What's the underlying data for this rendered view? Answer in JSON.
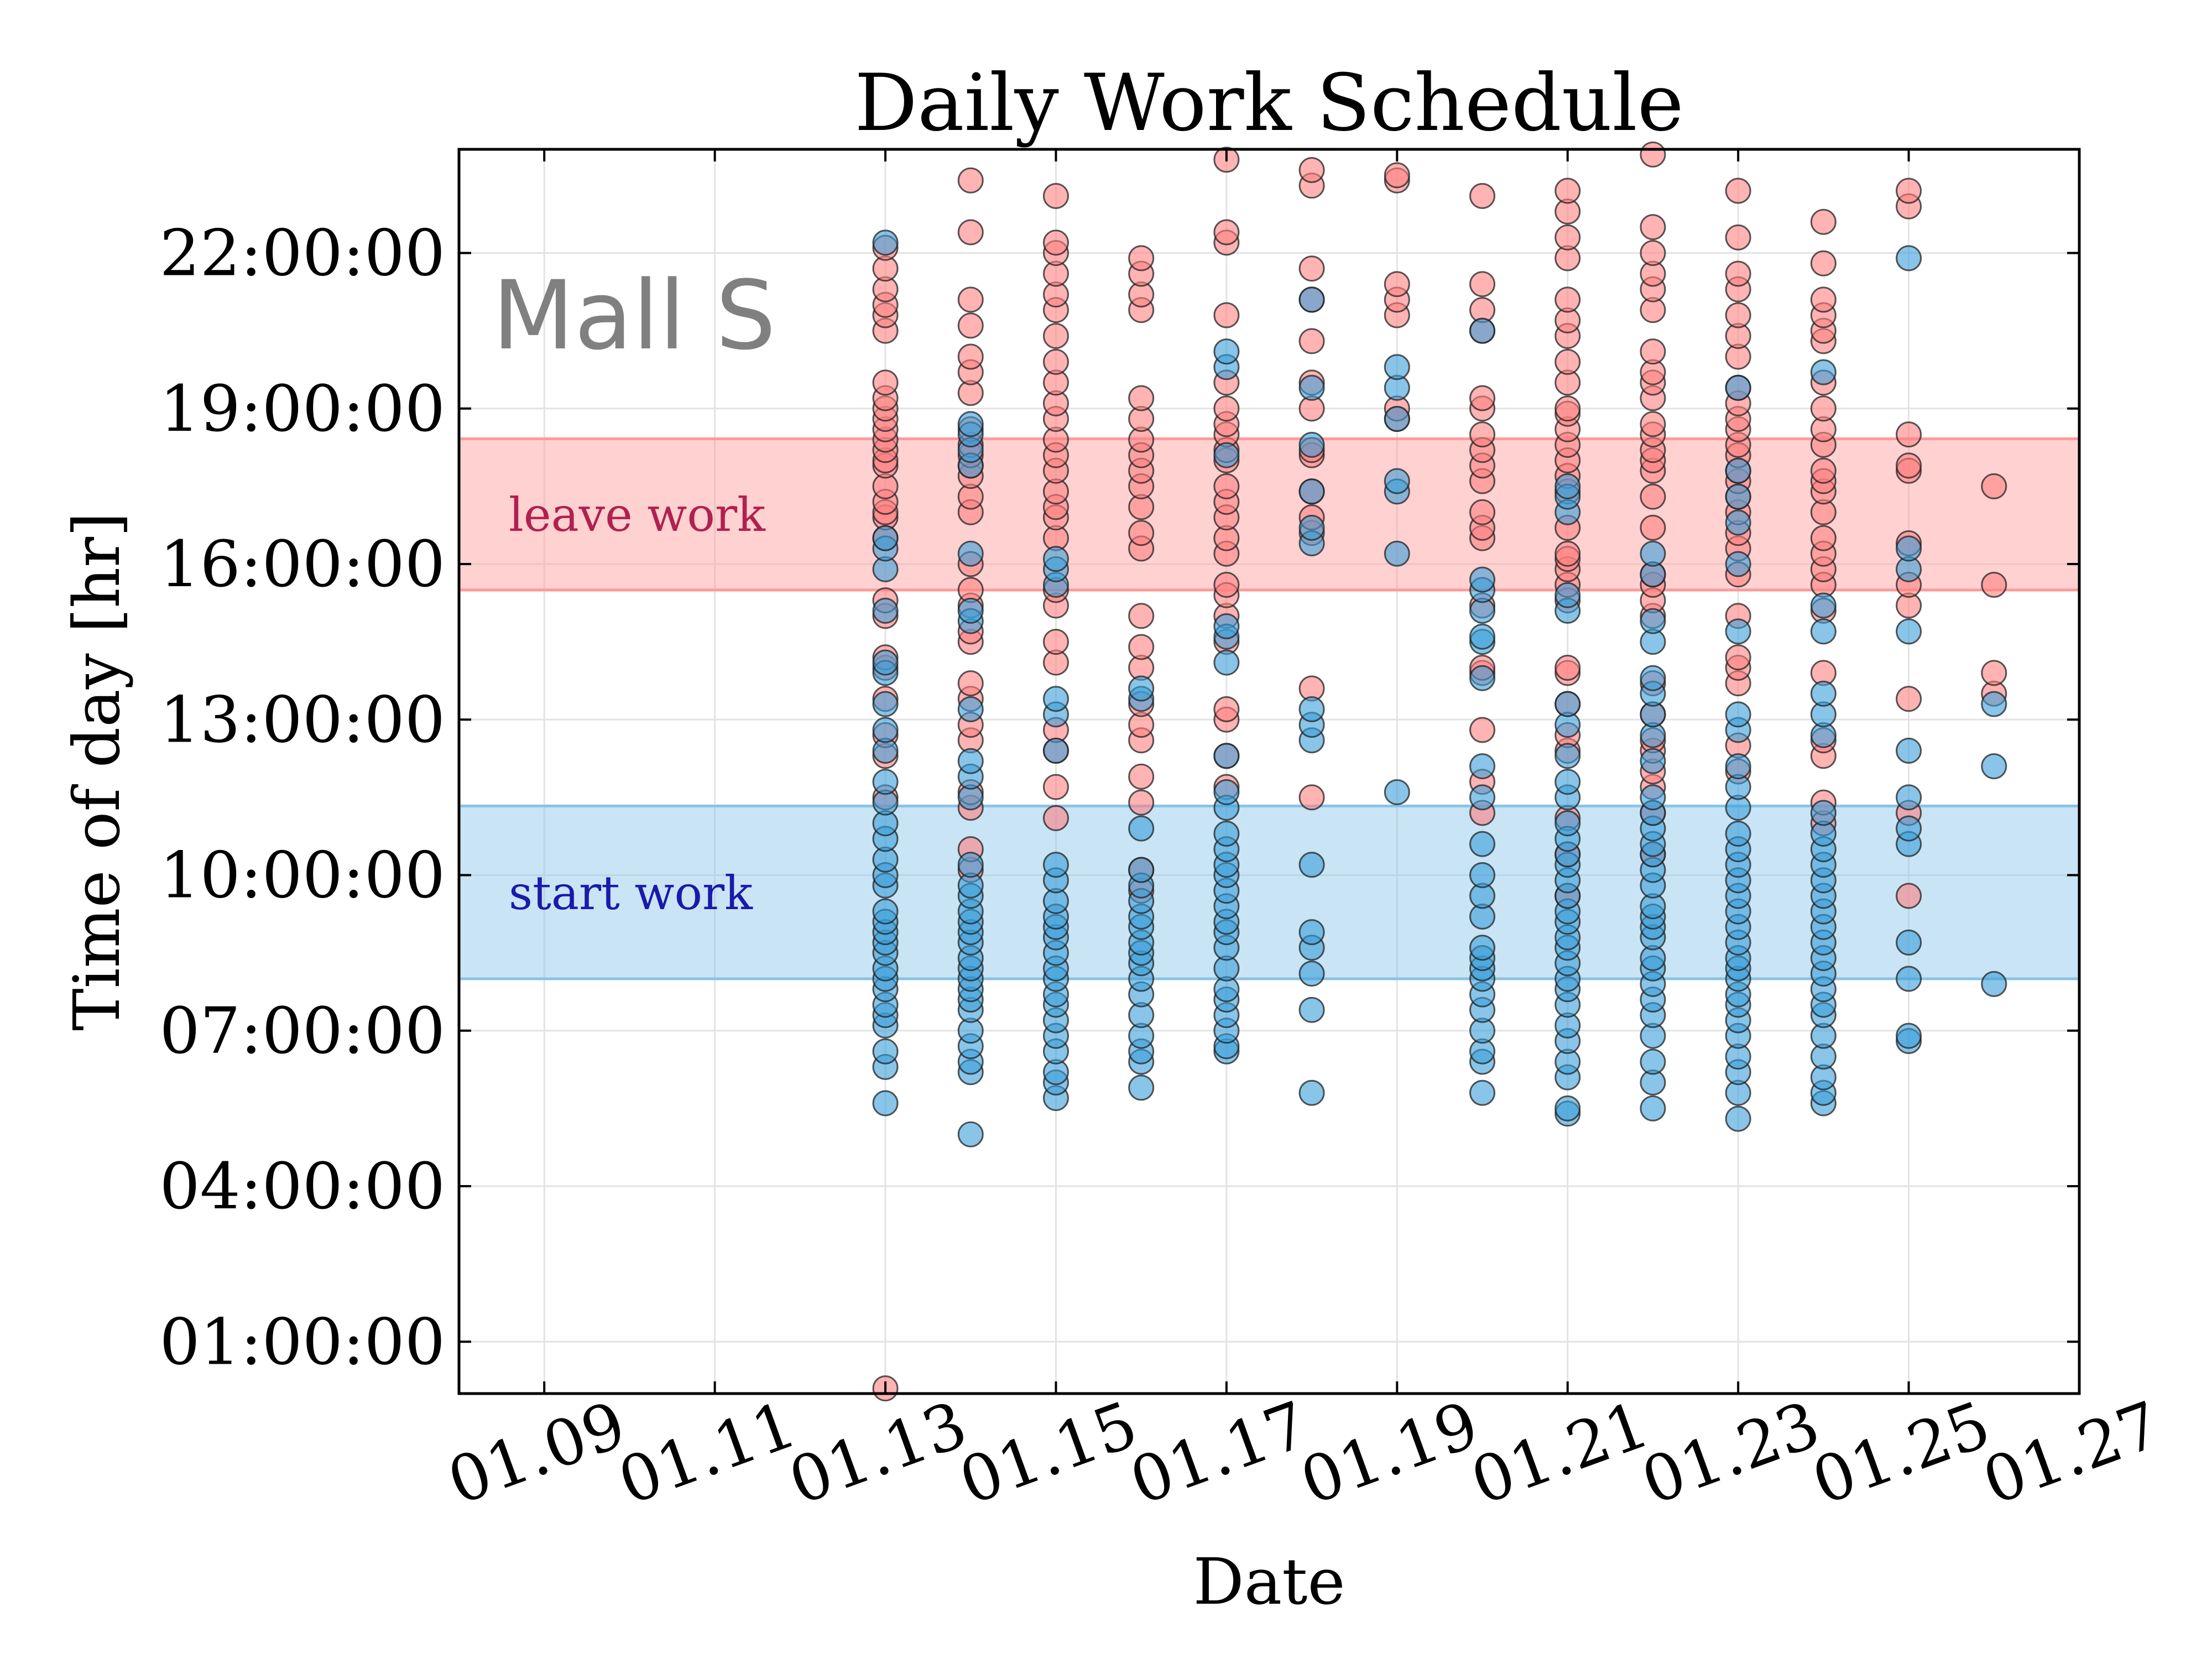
{
  "chart_data": {
    "type": "scatter",
    "title": "Daily Work Schedule",
    "xlabel": "Date",
    "ylabel": "Time of day [hr]",
    "annotation": "Mall S",
    "grid": true,
    "xlim": [
      "01.08",
      "01.27"
    ],
    "ylim": [
      "00:00:00",
      "24:00:00"
    ],
    "x_ticks": [
      "01.09",
      "01.11",
      "01.13",
      "01.15",
      "01.17",
      "01.19",
      "01.21",
      "01.23",
      "01.25",
      "01.27"
    ],
    "y_ticks": [
      "01:00:00",
      "04:00:00",
      "07:00:00",
      "10:00:00",
      "13:00:00",
      "16:00:00",
      "19:00:00",
      "22:00:00"
    ],
    "bands": [
      {
        "label": "leave work",
        "y_from": "15:30",
        "y_to": "18:25",
        "color": "#ff9999",
        "label_color": "#b02050"
      },
      {
        "label": "start work",
        "y_from": "08:00",
        "y_to": "11:20",
        "color": "#87c4e8",
        "label_color": "#1a1aaa"
      }
    ],
    "series": [
      {
        "color": "#ff8080",
        "points": [
          {
            "x": "01.13",
            "y": [
              0.1,
              11.5,
              12.3,
              12.7,
              13.4,
              14.0,
              14.2,
              15.0,
              15.3,
              16.5,
              16.9,
              17.0,
              17.2,
              17.5,
              17.9,
              18.0,
              18.2,
              18.4,
              18.6,
              18.8,
              19.0,
              19.2,
              19.5,
              20.5,
              20.8,
              21.0,
              21.3,
              21.7,
              22.1
            ]
          },
          {
            "x": "01.14",
            "y": [
              10.1,
              10.5,
              11.3,
              11.6,
              12.6,
              12.9,
              13.4,
              13.7,
              14.5,
              14.7,
              15.2,
              15.5,
              16.0,
              17.0,
              17.3,
              17.7,
              17.9,
              18.1,
              18.3,
              18.6,
              19.3,
              19.7,
              20.0,
              20.6,
              21.1,
              22.4,
              23.4
            ]
          },
          {
            "x": "01.15",
            "y": [
              11.1,
              11.7,
              12.4,
              12.8,
              14.1,
              14.5,
              15.2,
              15.5,
              16.5,
              16.9,
              17.1,
              17.4,
              17.8,
              18.1,
              18.4,
              18.8,
              19.1,
              19.5,
              19.9,
              20.4,
              20.9,
              21.2,
              21.6,
              22.0,
              22.2,
              23.1
            ]
          },
          {
            "x": "01.16",
            "y": [
              9.7,
              10.1,
              11.4,
              11.9,
              12.6,
              12.9,
              13.3,
              14.0,
              14.4,
              15.0,
              16.3,
              16.6,
              17.1,
              17.5,
              17.8,
              18.1,
              18.4,
              18.8,
              19.2,
              20.9,
              21.2,
              21.6,
              21.9
            ]
          },
          {
            "x": "01.17",
            "y": [
              11.7,
              12.3,
              13.0,
              13.2,
              14.5,
              15.0,
              15.4,
              15.6,
              16.2,
              16.5,
              16.9,
              17.2,
              17.5,
              18.0,
              18.2,
              18.5,
              18.7,
              19.0,
              19.5,
              20.8,
              22.2,
              22.4,
              23.8
            ]
          },
          {
            "x": "01.18",
            "y": [
              11.5,
              13.6,
              16.6,
              16.9,
              17.4,
              18.1,
              18.2,
              19.0,
              19.5,
              20.3,
              21.1,
              21.7,
              23.3,
              23.6
            ]
          },
          {
            "x": "01.19",
            "y": [
              18.8,
              19.0,
              20.8,
              21.1,
              21.4,
              23.4,
              23.5
            ]
          },
          {
            "x": "01.20",
            "y": [
              11.2,
              11.8,
              12.8,
              13.9,
              14.0,
              15.2,
              16.5,
              16.7,
              17.0,
              17.6,
              17.9,
              18.2,
              18.5,
              19.0,
              19.2,
              20.5,
              20.9,
              21.4,
              23.1
            ]
          },
          {
            "x": "01.21",
            "y": [
              9.6,
              10.4,
              11.1,
              12.4,
              12.7,
              13.3,
              13.9,
              14.0,
              15.3,
              15.6,
              15.9,
              16.1,
              16.2,
              16.7,
              17.4,
              17.7,
              18.0,
              18.3,
              18.6,
              18.9,
              19.0,
              19.5,
              19.9,
              20.4,
              20.7,
              21.1,
              21.9,
              22.3,
              22.8,
              23.2
            ]
          },
          {
            "x": "01.22",
            "y": [
              10.4,
              11.2,
              11.7,
              12.0,
              12.4,
              12.6,
              13.1,
              13.7,
              15.0,
              15.3,
              15.6,
              15.8,
              16.7,
              17.3,
              17.8,
              18.0,
              18.2,
              18.5,
              18.7,
              19.2,
              19.5,
              19.7,
              20.1,
              20.9,
              21.3,
              21.6,
              22.0,
              22.5,
              23.9
            ]
          },
          {
            "x": "01.23",
            "y": [
              12.0,
              12.5,
              13.7,
              14.0,
              14.2,
              15.0,
              15.8,
              16.3,
              16.6,
              17.0,
              17.3,
              17.6,
              17.8,
              18.1,
              18.3,
              18.6,
              18.8,
              19.1,
              19.4,
              20.0,
              20.4,
              20.8,
              21.3,
              21.6,
              22.3,
              23.2
            ]
          },
          {
            "x": "01.24",
            "y": [
              11.0,
              11.4,
              12.3,
              12.6,
              13.9,
              15.1,
              15.6,
              15.9,
              16.2,
              16.5,
              17.0,
              17.4,
              17.6,
              17.8,
              18.3,
              18.6,
              19.0,
              19.5,
              20.3,
              20.5,
              20.8,
              21.1,
              21.8,
              22.6
            ]
          },
          {
            "x": "01.25",
            "y": [
              9.6,
              11.2,
              13.4,
              15.2,
              15.6,
              16.4,
              17.8,
              17.9,
              18.5,
              22.9,
              23.2
            ]
          },
          {
            "x": "01.26",
            "y": [
              13.5,
              13.9,
              15.6,
              17.5
            ]
          }
        ]
      },
      {
        "color": "#3a9fd8",
        "points": [
          {
            "x": "01.13",
            "y": [
              5.6,
              6.3,
              6.6,
              7.1,
              7.3,
              7.5,
              7.8,
              8.0,
              8.2,
              8.5,
              8.7,
              8.9,
              9.1,
              9.3,
              9.8,
              10.0,
              10.3,
              10.7,
              11.0,
              11.4,
              11.8,
              12.4,
              12.8,
              13.3,
              13.9,
              14.1,
              15.1,
              15.9,
              16.3,
              16.5,
              22.2
            ]
          },
          {
            "x": "01.14",
            "y": [
              5.0,
              6.2,
              6.4,
              6.7,
              7.0,
              7.4,
              7.6,
              7.8,
              8.0,
              8.2,
              8.4,
              8.7,
              8.9,
              9.1,
              9.3,
              9.6,
              9.8,
              10.2,
              11.5,
              11.9,
              12.2,
              13.2,
              14.9,
              15.1,
              16.2,
              17.9,
              18.2,
              18.5,
              18.7
            ]
          },
          {
            "x": "01.15",
            "y": [
              5.7,
              6.0,
              6.2,
              6.6,
              6.9,
              7.2,
              7.5,
              7.7,
              8.0,
              8.2,
              8.5,
              8.8,
              9.0,
              9.2,
              9.5,
              9.9,
              10.2,
              12.4,
              13.1,
              13.4,
              15.6,
              15.9,
              16.1
            ]
          },
          {
            "x": "01.16",
            "y": [
              5.9,
              6.4,
              6.6,
              6.9,
              7.3,
              7.7,
              8.0,
              8.3,
              8.5,
              8.7,
              9.0,
              9.2,
              9.5,
              9.8,
              10.1,
              10.9,
              13.4,
              13.6
            ]
          },
          {
            "x": "01.17",
            "y": [
              6.6,
              6.7,
              7.0,
              7.3,
              7.6,
              7.8,
              8.2,
              8.6,
              8.9,
              9.1,
              9.4,
              9.7,
              10.0,
              10.2,
              10.5,
              10.8,
              11.3,
              11.6,
              12.3,
              14.1,
              14.6,
              14.8,
              18.1,
              19.8,
              20.1
            ]
          },
          {
            "x": "01.18",
            "y": [
              5.8,
              7.4,
              8.1,
              8.6,
              8.9,
              10.2,
              12.6,
              12.9,
              13.2,
              16.4,
              16.7,
              17.4,
              18.3,
              19.4,
              21.1
            ]
          },
          {
            "x": "01.19",
            "y": [
              11.6,
              16.2,
              17.4,
              17.6,
              18.8,
              19.4,
              19.8
            ]
          },
          {
            "x": "01.20",
            "y": [
              5.8,
              6.4,
              6.6,
              7.0,
              7.4,
              7.7,
              8.0,
              8.2,
              8.4,
              8.6,
              9.2,
              9.6,
              10.0,
              10.6,
              11.5,
              12.1,
              13.8,
              14.5,
              14.6,
              15.1,
              15.5,
              15.7,
              20.5
            ]
          },
          {
            "x": "01.21",
            "y": [
              5.4,
              5.5,
              6.1,
              6.4,
              6.8,
              7.1,
              7.5,
              7.8,
              8.0,
              8.3,
              8.6,
              8.8,
              9.1,
              9.3,
              9.6,
              9.9,
              10.2,
              10.4,
              10.7,
              11.0,
              11.5,
              11.8,
              12.3,
              12.9,
              13.3,
              15.1,
              15.4,
              17.0,
              17.3,
              17.5
            ]
          },
          {
            "x": "01.22",
            "y": [
              5.5,
              6.0,
              6.4,
              6.9,
              7.3,
              7.6,
              7.9,
              8.2,
              8.4,
              8.8,
              9.0,
              9.2,
              9.4,
              9.8,
              10.1,
              10.4,
              10.6,
              10.9,
              11.2,
              11.5,
              12.2,
              12.7,
              13.1,
              13.5,
              13.8,
              14.5,
              14.9,
              15.8,
              16.2
            ]
          },
          {
            "x": "01.23",
            "y": [
              5.3,
              5.8,
              6.2,
              6.5,
              6.9,
              7.2,
              7.5,
              7.7,
              8.0,
              8.2,
              8.4,
              8.7,
              9.0,
              9.3,
              9.6,
              9.9,
              10.2,
              10.5,
              10.8,
              11.3,
              11.7,
              12.1,
              12.8,
              13.1,
              14.7,
              16.0,
              16.8,
              17.3,
              17.8,
              19.4
            ]
          },
          {
            "x": "01.24",
            "y": [
              5.6,
              5.8,
              6.1,
              6.5,
              6.9,
              7.3,
              7.5,
              7.8,
              8.1,
              8.4,
              8.7,
              9.0,
              9.3,
              9.6,
              9.9,
              10.2,
              10.5,
              10.8,
              11.2,
              12.7,
              13.1,
              13.5,
              14.7,
              15.2,
              19.7
            ]
          },
          {
            "x": "01.25",
            "y": [
              6.8,
              6.9,
              8.0,
              8.7,
              10.6,
              10.9,
              11.5,
              12.4,
              14.7,
              15.9,
              16.3,
              21.9
            ]
          },
          {
            "x": "01.26",
            "y": [
              7.9,
              12.1,
              13.3
            ]
          }
        ]
      }
    ]
  }
}
